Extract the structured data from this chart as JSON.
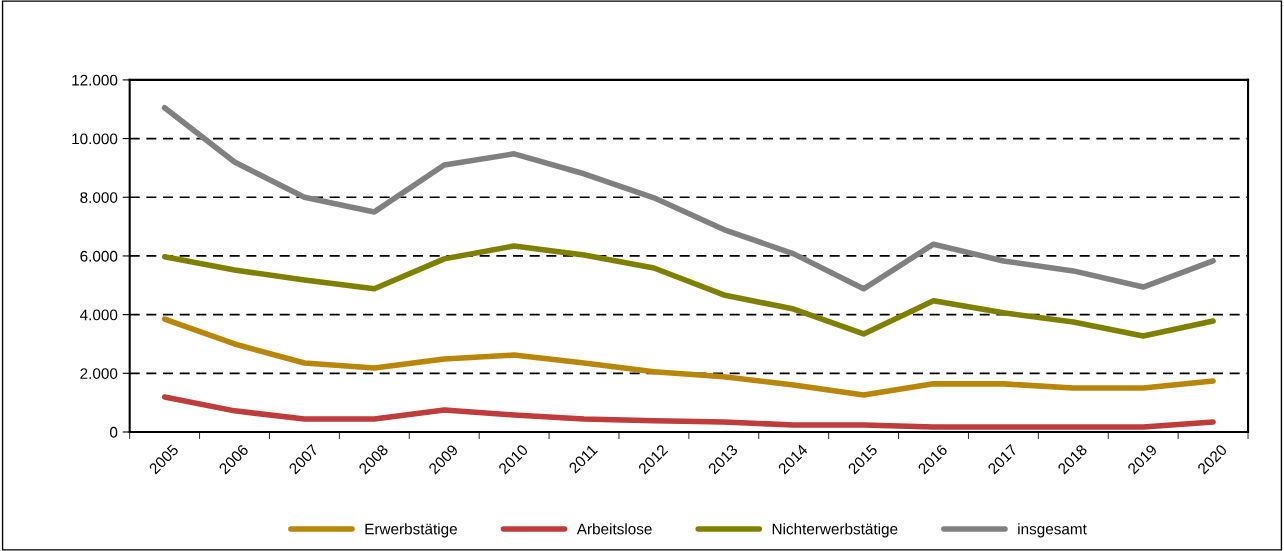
{
  "chart_data": {
    "type": "line",
    "categories": [
      "2005",
      "2006",
      "2007",
      "2008",
      "2009",
      "2010",
      "2011",
      "2012",
      "2013",
      "2014",
      "2015",
      "2016",
      "2017",
      "2018",
      "2019",
      "2020"
    ],
    "series": [
      {
        "name": "Erwerbstätige",
        "color": "#b8860b",
        "values": [
          3850,
          3000,
          2350,
          2180,
          2490,
          2620,
          2350,
          2050,
          1880,
          1600,
          1260,
          1640,
          1640,
          1500,
          1500,
          1740
        ]
      },
      {
        "name": "Arbeitslose",
        "color": "#be3c3c",
        "values": [
          1190,
          720,
          440,
          440,
          750,
          580,
          440,
          380,
          340,
          240,
          240,
          170,
          170,
          170,
          170,
          340
        ]
      },
      {
        "name": "Nichterwerbstätige",
        "color": "#7f8000",
        "values": [
          5970,
          5520,
          5180,
          4880,
          5900,
          6340,
          6030,
          5590,
          4670,
          4190,
          3340,
          4470,
          4060,
          3750,
          3270,
          3780
        ]
      },
      {
        "name": "insgesamt",
        "color": "#808080",
        "values": [
          11050,
          9200,
          8000,
          7500,
          9100,
          9480,
          8800,
          7980,
          6900,
          6070,
          4880,
          6400,
          5830,
          5490,
          4940,
          5830
        ]
      }
    ],
    "ylim": [
      0,
      12000
    ],
    "yticks": [
      {
        "value": 0,
        "label": "0"
      },
      {
        "value": 2000,
        "label": "2.000"
      },
      {
        "value": 4000,
        "label": "4.000"
      },
      {
        "value": 6000,
        "label": "6.000"
      },
      {
        "value": 8000,
        "label": "8.000"
      },
      {
        "value": 10000,
        "label": "10.000"
      },
      {
        "value": 12000,
        "label": "12.000"
      }
    ],
    "grid": "y",
    "legend": "bottom",
    "marker": "none",
    "line_style": "solid"
  }
}
